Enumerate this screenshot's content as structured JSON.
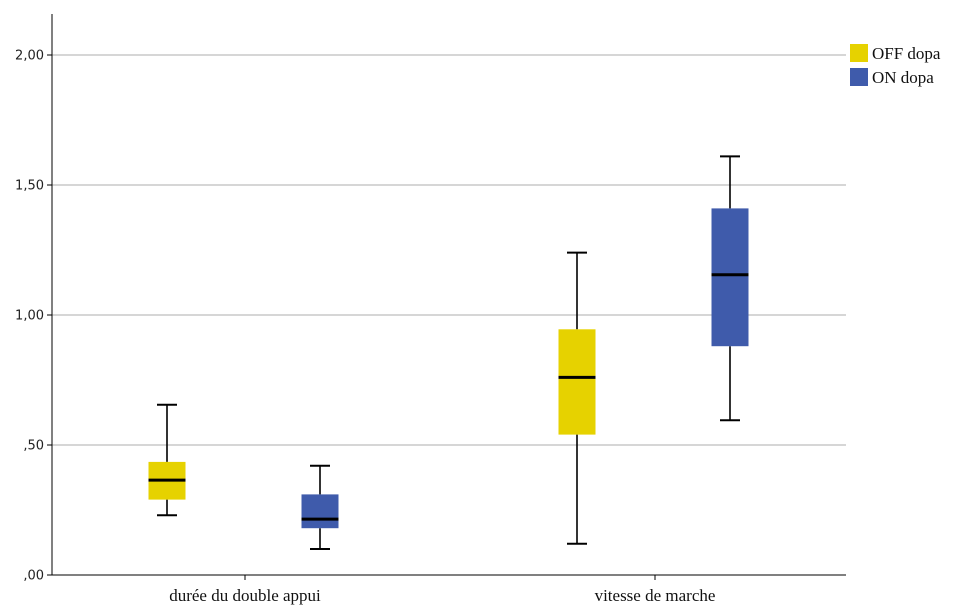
{
  "chart_data": {
    "type": "boxplot",
    "categories": [
      "durée du double appui",
      "vitesse de marche"
    ],
    "y_ticks": [
      ",00",
      ",50",
      "1,00",
      "1,50",
      "2,00"
    ],
    "y_tick_values": [
      0,
      0.5,
      1.0,
      1.5,
      2.0
    ],
    "ylim": [
      0,
      2.0
    ],
    "grid": true,
    "legend_position": "top-right",
    "series": [
      {
        "name": "OFF dopa",
        "color": "#e6d200",
        "boxes": [
          {
            "min": 0.23,
            "q1": 0.29,
            "median": 0.365,
            "q3": 0.435,
            "max": 0.655
          },
          {
            "min": 0.12,
            "q1": 0.54,
            "median": 0.76,
            "q3": 0.945,
            "max": 1.24
          }
        ]
      },
      {
        "name": "ON dopa",
        "color": "#3f5bab",
        "boxes": [
          {
            "min": 0.1,
            "q1": 0.18,
            "median": 0.215,
            "q3": 0.31,
            "max": 0.42
          },
          {
            "min": 0.595,
            "q1": 0.88,
            "median": 1.155,
            "q3": 1.41,
            "max": 1.61
          }
        ]
      }
    ]
  }
}
